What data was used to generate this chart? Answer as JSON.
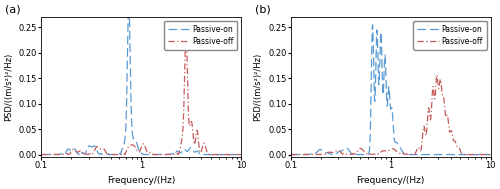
{
  "title_a": "(a)",
  "title_b": "(b)",
  "xlabel": "Frequency/(Hz)",
  "ylabel": "PSD/((m/s²)²/Hz)",
  "xlim": [
    0.1,
    10
  ],
  "ylim": [
    -0.005,
    0.27
  ],
  "yticks": [
    0.0,
    0.05,
    0.1,
    0.15,
    0.2,
    0.25
  ],
  "legend_labels": [
    "Passive-on",
    "Passive-off"
  ],
  "color_on": "#5B9BD5",
  "color_off": "#C55A5A",
  "figsize": [
    5.0,
    1.89
  ],
  "dpi": 100
}
